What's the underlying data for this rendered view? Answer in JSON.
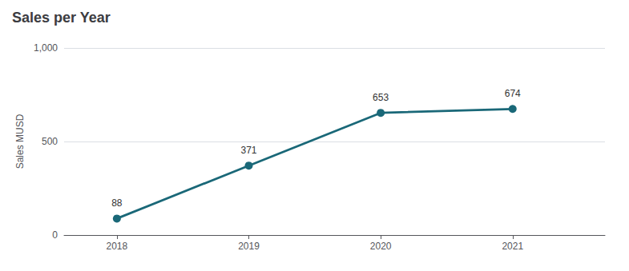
{
  "chart_data": {
    "type": "line",
    "title": "Sales per Year",
    "x": [
      2018,
      2019,
      2020,
      2021
    ],
    "values": [
      88,
      371,
      653,
      674
    ],
    "color": "#1a6878",
    "marker": "circle",
    "ylabel": "Sales MUSD",
    "xlim": [
      2017.6,
      2021.7
    ],
    "xticks": [
      2018,
      2019,
      2020,
      2021
    ],
    "ylim": [
      0,
      1000
    ],
    "yticks": [
      0,
      500,
      {
        "value": 1000,
        "label": "1,000"
      }
    ],
    "grid": true,
    "data_labels": true
  }
}
